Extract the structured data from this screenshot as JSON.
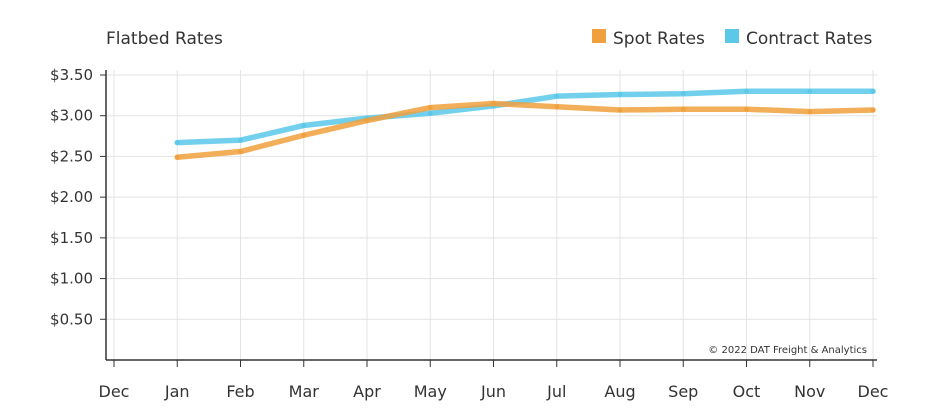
{
  "chart_data": {
    "type": "line",
    "title": "Flatbed Rates",
    "credit": "© 2022 DAT Freight & Analytics",
    "x_ticks": [
      "Dec",
      "Jan",
      "Feb",
      "Mar",
      "Apr",
      "May",
      "Jun",
      "Jul",
      "Aug",
      "Sep",
      "Oct",
      "Nov",
      "Dec"
    ],
    "categories": [
      "Jan",
      "Feb",
      "Mar",
      "Apr",
      "May",
      "Jun",
      "Jul",
      "Aug",
      "Sep",
      "Oct",
      "Nov",
      "Dec"
    ],
    "y_ticks": [
      "$0.50",
      "$1.00",
      "$1.50",
      "$2.00",
      "$2.50",
      "$3.00",
      "$3.50"
    ],
    "y_tick_values": [
      0.5,
      1.0,
      1.5,
      2.0,
      2.5,
      3.0,
      3.5
    ],
    "ylim": [
      0,
      3.5
    ],
    "grid": true,
    "legend_position": "top-right",
    "series": [
      {
        "name": "Spot Rates",
        "color": "#f0a03c",
        "values": [
          2.49,
          2.56,
          2.76,
          2.94,
          3.1,
          3.15,
          3.11,
          3.07,
          3.08,
          3.08,
          3.05,
          3.07
        ]
      },
      {
        "name": "Contract Rates",
        "color": "#5bc8ea",
        "values": [
          2.67,
          2.7,
          2.88,
          2.97,
          3.03,
          3.12,
          3.24,
          3.26,
          3.27,
          3.3,
          3.3,
          3.3
        ]
      }
    ]
  }
}
